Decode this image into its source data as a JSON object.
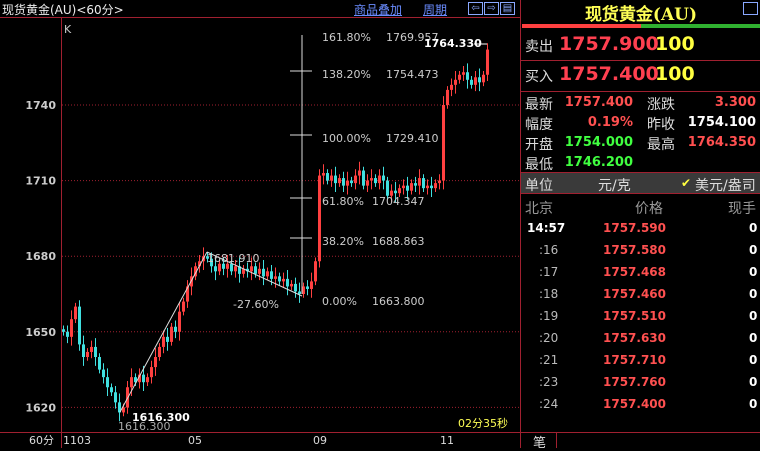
{
  "header": {
    "title": "现货黄金(AU)<60分>",
    "overlay_link": "商品叠加",
    "period_link": "周期",
    "nav": [
      "⇦",
      "⇨",
      "▤"
    ]
  },
  "chart": {
    "indicator": "K",
    "y_ticks": [
      1740,
      1710,
      1680,
      1650,
      1620
    ],
    "x_period": "60分",
    "x_ticks": [
      "1103",
      "05",
      "09",
      "11"
    ],
    "countdown": "02分35秒",
    "high_label": "1764.330",
    "low_label": "1616.300",
    "low_label_echo": "1616.300",
    "swing_label": "1681.910",
    "swing_pct": "-27.60%",
    "fib": [
      {
        "pct": "161.80%",
        "price": "1769.957"
      },
      {
        "pct": "138.20%",
        "price": "1754.473"
      },
      {
        "pct": "100.00%",
        "price": "1729.410"
      },
      {
        "pct": "61.80%",
        "price": "1704.347"
      },
      {
        "pct": "38.20%",
        "price": "1688.863"
      },
      {
        "pct": "0.00%",
        "price": "1663.800"
      }
    ],
    "closes": [
      1650,
      1648,
      1655,
      1660,
      1645,
      1640,
      1642,
      1644,
      1640,
      1635,
      1632,
      1628,
      1626,
      1622,
      1618,
      1620,
      1628,
      1632,
      1630,
      1633,
      1630,
      1632,
      1636,
      1640,
      1644,
      1648,
      1646,
      1652,
      1650,
      1658,
      1662,
      1668,
      1672,
      1676,
      1678,
      1680,
      1679,
      1676,
      1674,
      1677,
      1675,
      1677,
      1674,
      1676,
      1673,
      1675,
      1674,
      1676,
      1673,
      1675,
      1672,
      1674,
      1671,
      1672,
      1670,
      1671,
      1668,
      1669,
      1666,
      1665,
      1668,
      1667,
      1670,
      1678,
      1712,
      1713,
      1710,
      1712,
      1709,
      1711,
      1708,
      1710,
      1709,
      1712,
      1714,
      1708,
      1710,
      1711,
      1709,
      1712,
      1710,
      1704,
      1706,
      1705,
      1707,
      1708,
      1706,
      1709,
      1708,
      1711,
      1707,
      1708,
      1707,
      1709,
      1710,
      1740,
      1746,
      1748,
      1750,
      1752,
      1753,
      1750,
      1748,
      1751,
      1749,
      1752,
      1762
    ],
    "colors": {
      "up": "#ff4040",
      "down": "#40e0e0",
      "grid": "#a02030"
    }
  },
  "quote": {
    "title": "现货黄金(AU)",
    "sell_label": "卖出",
    "sell_price": "1757.900",
    "sell_vol": "100",
    "buy_label": "买入",
    "buy_price": "1757.400",
    "buy_vol": "100",
    "bid_ratio": 0.5,
    "stats": [
      {
        "label": "最新",
        "value": "1757.400",
        "color": "#ff5050",
        "label2": "涨跌",
        "value2": "3.300",
        "color2": "#ff5050"
      },
      {
        "label": "幅度",
        "value": "0.19%",
        "color": "#ff5050",
        "label2": "昨收",
        "value2": "1754.100",
        "color2": "#ffffff"
      },
      {
        "label": "开盘",
        "value": "1754.000",
        "color": "#40ff40",
        "label2": "最高",
        "value2": "1764.350",
        "color2": "#ff5050"
      },
      {
        "label": "最低",
        "value": "1746.200",
        "color": "#40ff40",
        "label2": "",
        "value2": "",
        "color2": "#fff"
      }
    ],
    "unit_label": "单位",
    "unit_cny": "元/克",
    "unit_usd": "美元/盎司",
    "cols": [
      "北京",
      "价格",
      "现手"
    ],
    "ticks": [
      {
        "time": "14:57",
        "price": "1757.590",
        "vol": "0"
      },
      {
        "time": ":16",
        "price": "1757.580",
        "vol": "0"
      },
      {
        "time": ":17",
        "price": "1757.468",
        "vol": "0"
      },
      {
        "time": ":18",
        "price": "1757.460",
        "vol": "0"
      },
      {
        "time": ":19",
        "price": "1757.510",
        "vol": "0"
      },
      {
        "time": ":20",
        "price": "1757.630",
        "vol": "0"
      },
      {
        "time": ":21",
        "price": "1757.710",
        "vol": "0"
      },
      {
        "time": ":23",
        "price": "1757.760",
        "vol": "0"
      },
      {
        "time": ":24",
        "price": "1757.400",
        "vol": "0"
      }
    ],
    "tab": "笔"
  }
}
